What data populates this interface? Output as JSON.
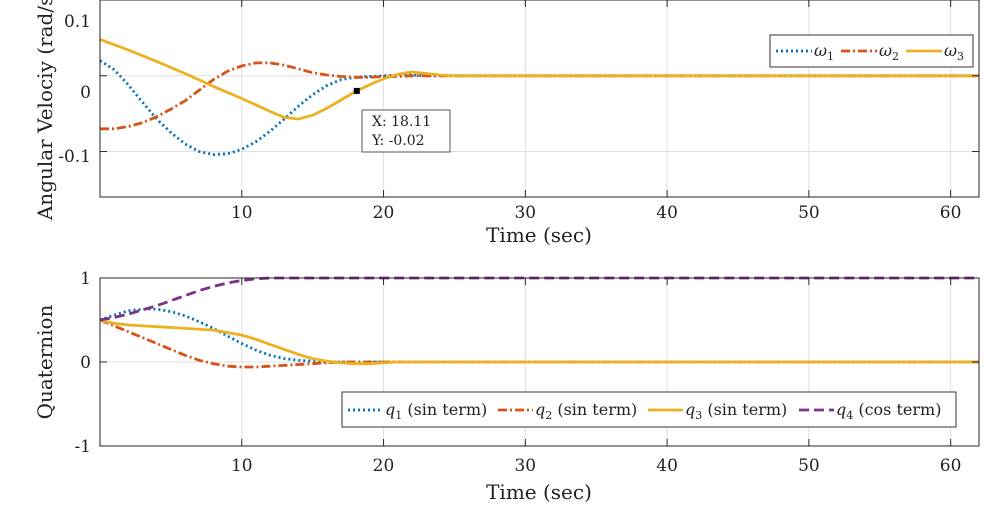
{
  "chart_data": [
    {
      "type": "line",
      "title": "",
      "xlabel": "Time (sec)",
      "ylabel": "Angular Velociy (rad/s)",
      "xlim": [
        0,
        62
      ],
      "ylim": [
        -0.16,
        0.1
      ],
      "xticks": [
        10,
        20,
        30,
        40,
        50,
        60
      ],
      "yticks": [
        0.1,
        0,
        -0.1
      ],
      "ytick_labels": [
        "0.1",
        "0",
        "-0.1"
      ],
      "grid": true,
      "legend_position": "top-right",
      "series": [
        {
          "symbol": "ω",
          "sub": "1",
          "color": "#0072BD",
          "style": "dotted",
          "x": [
            0,
            1,
            2,
            3,
            4,
            5,
            6,
            7,
            8,
            9,
            10,
            11,
            12,
            13,
            14,
            15,
            16,
            17,
            18,
            19,
            20,
            21,
            22,
            23,
            24,
            25,
            26,
            62
          ],
          "y": [
            0.02,
            0.008,
            -0.012,
            -0.035,
            -0.057,
            -0.075,
            -0.09,
            -0.1,
            -0.104,
            -0.103,
            -0.097,
            -0.087,
            -0.073,
            -0.057,
            -0.04,
            -0.025,
            -0.013,
            -0.005,
            -0.002,
            -0.001,
            0,
            0.001,
            0.001,
            0,
            0,
            0,
            0,
            0
          ]
        },
        {
          "symbol": "ω",
          "sub": "2",
          "color": "#D95319",
          "style": "dashdot",
          "x": [
            0,
            1,
            2,
            3,
            4,
            5,
            6,
            7,
            8,
            9,
            10,
            11,
            12,
            13,
            14,
            15,
            16,
            17,
            18,
            19,
            20,
            21,
            22,
            23,
            24,
            25,
            26,
            62
          ],
          "y": [
            -0.07,
            -0.07,
            -0.067,
            -0.062,
            -0.054,
            -0.044,
            -0.033,
            -0.019,
            -0.005,
            0.006,
            0.013,
            0.017,
            0.017,
            0.014,
            0.009,
            0.004,
            0.001,
            -0.001,
            -0.002,
            -0.002,
            -0.001,
            -0.001,
            0,
            0,
            0,
            0,
            0,
            0
          ]
        },
        {
          "symbol": "ω",
          "sub": "3",
          "color": "#EDB120",
          "style": "solid",
          "x": [
            0,
            2,
            4,
            6,
            8,
            10,
            12,
            13,
            14,
            15,
            16,
            17,
            18,
            19,
            20,
            21,
            22,
            23,
            24,
            25,
            26,
            62
          ],
          "y": [
            0.048,
            0.034,
            0.019,
            0.003,
            -0.014,
            -0.03,
            -0.047,
            -0.055,
            -0.057,
            -0.052,
            -0.043,
            -0.032,
            -0.021,
            -0.012,
            -0.004,
            0.002,
            0.005,
            0.003,
            0.001,
            0,
            0,
            0
          ]
        }
      ],
      "annotation": {
        "x": 18.11,
        "y": -0.02,
        "x_text": "X: 18.11",
        "y_text": "Y: -0.02"
      }
    },
    {
      "type": "line",
      "title": "",
      "xlabel": "Time (sec)",
      "ylabel": "Quaternion",
      "xlim": [
        0,
        62
      ],
      "ylim": [
        -1,
        1
      ],
      "xticks": [
        10,
        20,
        30,
        40,
        50,
        60
      ],
      "yticks": [
        1,
        0,
        -1
      ],
      "ytick_labels": [
        "1",
        "0",
        "-1"
      ],
      "grid": true,
      "legend_position": "bottom-right",
      "series": [
        {
          "symbol": "q",
          "sub": "1",
          "suffix": " (sin term)",
          "color": "#0072BD",
          "style": "dotted",
          "x": [
            0,
            1,
            2,
            3,
            4,
            5,
            6,
            7,
            8,
            9,
            10,
            11,
            12,
            13,
            14,
            15,
            16,
            17,
            18,
            19,
            20,
            62
          ],
          "y": [
            0.5,
            0.56,
            0.61,
            0.63,
            0.63,
            0.6,
            0.55,
            0.48,
            0.4,
            0.31,
            0.22,
            0.14,
            0.08,
            0.04,
            0.02,
            0.01,
            0,
            0,
            0,
            0,
            0,
            0
          ]
        },
        {
          "symbol": "q",
          "sub": "2",
          "suffix": " (sin term)",
          "color": "#D95319",
          "style": "dashdot",
          "x": [
            0,
            1,
            2,
            3,
            4,
            5,
            6,
            7,
            8,
            9,
            10,
            11,
            12,
            13,
            14,
            15,
            16,
            17,
            18,
            19,
            20,
            62
          ],
          "y": [
            0.5,
            0.43,
            0.36,
            0.29,
            0.22,
            0.15,
            0.08,
            0.02,
            -0.02,
            -0.05,
            -0.06,
            -0.06,
            -0.05,
            -0.04,
            -0.03,
            -0.02,
            -0.01,
            0,
            0,
            0,
            0,
            0
          ]
        },
        {
          "symbol": "q",
          "sub": "3",
          "suffix": " (sin term)",
          "color": "#EDB120",
          "style": "solid",
          "x": [
            0,
            1,
            2,
            4,
            6,
            8,
            10,
            11,
            12,
            13,
            14,
            15,
            16,
            17,
            18,
            19,
            20,
            21,
            22,
            62
          ],
          "y": [
            0.5,
            0.46,
            0.44,
            0.42,
            0.4,
            0.38,
            0.32,
            0.27,
            0.21,
            0.15,
            0.09,
            0.04,
            0.01,
            -0.01,
            -0.02,
            -0.02,
            -0.01,
            0,
            0,
            0
          ]
        },
        {
          "symbol": "q",
          "sub": "4",
          "suffix": " (cos term)",
          "color": "#7E2F8E",
          "style": "dashed",
          "x": [
            0,
            1,
            2,
            3,
            4,
            5,
            6,
            7,
            8,
            9,
            10,
            11,
            12,
            13,
            14,
            15,
            16,
            17,
            18,
            62
          ],
          "y": [
            0.5,
            0.53,
            0.57,
            0.62,
            0.67,
            0.73,
            0.79,
            0.85,
            0.9,
            0.94,
            0.97,
            0.99,
            1,
            1,
            1,
            1,
            1,
            1,
            1,
            1
          ]
        }
      ]
    }
  ]
}
